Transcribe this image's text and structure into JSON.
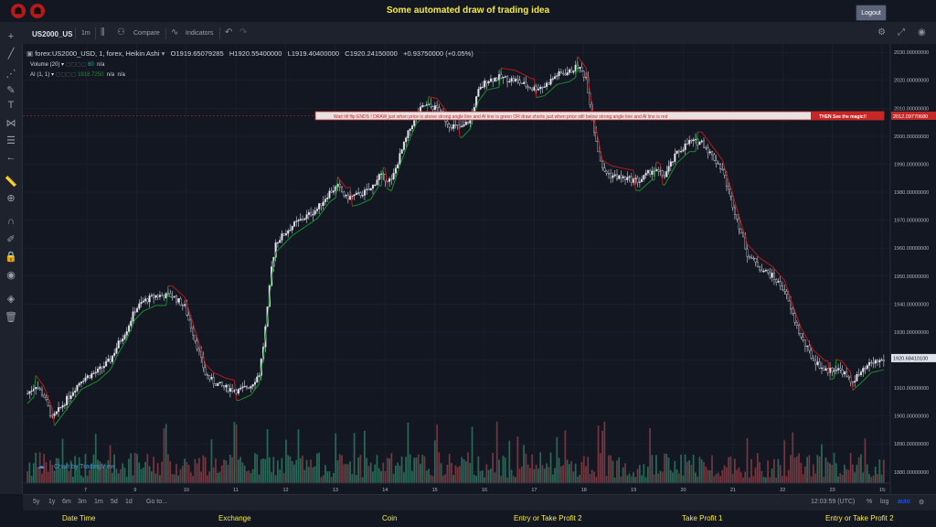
{
  "page": {
    "title": "Some automated draw of trading idea",
    "logout_label": "Logout"
  },
  "toolbar": {
    "symbol": "US2000_US",
    "interval": "1m",
    "compare_label": "Compare",
    "indicators_label": "Indicators"
  },
  "legend": {
    "main": "forex:US2000_USD, 1, forex, Heikin Ashi",
    "open": "O1919.65079285",
    "high": "H1920.55400000",
    "low": "L1919.40400000",
    "close": "C1920.24150000",
    "change": "+0.93750000 (+0.05%)",
    "volume_label": "Volume (20)",
    "volume_value": "60",
    "volume_na": "n/a",
    "ai_label": "AI (1, 1)",
    "ai_value": "1918.7250",
    "ai_na1": "n/a",
    "ai_na2": "n/a"
  },
  "annotation": {
    "text": "Wait till flip ENDS !    DRAW just when  price is above strong angle line and AI line is green          OR         draw shorts just when price still below strong angle line and AI line is red",
    "magic": "THEN See the magic!!",
    "level": "2012.09770680"
  },
  "watermark": "Chart by TradingView",
  "colors": {
    "up": "#26a69a",
    "down": "#ef5350",
    "ai_green": "#1a8f2e",
    "ai_red": "#b71c1c",
    "accent": "#f5e94a"
  },
  "chart_data": {
    "type": "candlestick",
    "y_axis": [
      "2030.00000000",
      "2020.00000000",
      "2010.00000000",
      "2000.00000000",
      "1990.00000000",
      "1980.00000000",
      "1970.00000000",
      "1960.00000000",
      "1950.00000000",
      "1940.00000000",
      "1930.00000000",
      "1920.00000000",
      "1910.00000000",
      "1900.00000000",
      "1890.00000000",
      "1880.00000000"
    ],
    "ylim": [
      1876,
      2033
    ],
    "x_axis": [
      "7",
      "9",
      "10",
      "11",
      "12",
      "13",
      "14",
      "15",
      "16",
      "17",
      "18",
      "19",
      "20",
      "21",
      "22",
      "23",
      "15:"
    ],
    "last_price": "1920.68410100",
    "price_path": [
      [
        0,
        1908
      ],
      [
        4,
        1911
      ],
      [
        8,
        1907
      ],
      [
        12,
        1899
      ],
      [
        18,
        1905
      ],
      [
        26,
        1913
      ],
      [
        34,
        1916
      ],
      [
        40,
        1920
      ],
      [
        44,
        1926
      ],
      [
        48,
        1931
      ],
      [
        52,
        1938
      ],
      [
        56,
        1941
      ],
      [
        62,
        1943
      ],
      [
        70,
        1943
      ],
      [
        76,
        1939
      ],
      [
        82,
        1925
      ],
      [
        86,
        1915
      ],
      [
        90,
        1912
      ],
      [
        96,
        1910
      ],
      [
        102,
        1909
      ],
      [
        108,
        1911
      ],
      [
        112,
        1915
      ],
      [
        114,
        1925
      ],
      [
        116,
        1938
      ],
      [
        118,
        1953
      ],
      [
        120,
        1962
      ],
      [
        124,
        1965
      ],
      [
        128,
        1968
      ],
      [
        134,
        1971
      ],
      [
        140,
        1974
      ],
      [
        146,
        1980
      ],
      [
        150,
        1982
      ],
      [
        154,
        1978
      ],
      [
        160,
        1979
      ],
      [
        166,
        1981
      ],
      [
        170,
        1986
      ],
      [
        176,
        1984
      ],
      [
        180,
        1993
      ],
      [
        184,
        2001
      ],
      [
        188,
        2008
      ],
      [
        192,
        2011
      ],
      [
        198,
        2010
      ],
      [
        204,
        2004
      ],
      [
        210,
        2003
      ],
      [
        214,
        2006
      ],
      [
        218,
        2016
      ],
      [
        222,
        2020
      ],
      [
        228,
        2021
      ],
      [
        236,
        2020
      ],
      [
        244,
        2017
      ],
      [
        250,
        2018
      ],
      [
        256,
        2022
      ],
      [
        262,
        2023
      ],
      [
        266,
        2025
      ],
      [
        270,
        2021
      ],
      [
        272,
        2012
      ],
      [
        274,
        2002
      ],
      [
        278,
        1988
      ],
      [
        282,
        1986
      ],
      [
        288,
        1985
      ],
      [
        296,
        1984
      ],
      [
        302,
        1988
      ],
      [
        308,
        1986
      ],
      [
        314,
        1994
      ],
      [
        320,
        1998
      ],
      [
        326,
        1998
      ],
      [
        332,
        1992
      ],
      [
        336,
        1988
      ],
      [
        340,
        1978
      ],
      [
        344,
        1968
      ],
      [
        348,
        1958
      ],
      [
        354,
        1953
      ],
      [
        360,
        1950
      ],
      [
        366,
        1945
      ],
      [
        370,
        1936
      ],
      [
        374,
        1928
      ],
      [
        380,
        1920
      ],
      [
        386,
        1916
      ],
      [
        390,
        1917
      ],
      [
        394,
        1916
      ],
      [
        398,
        1912
      ],
      [
        404,
        1916
      ],
      [
        408,
        1919
      ],
      [
        414,
        1920
      ]
    ],
    "volume_series": [
      "green",
      "red"
    ]
  },
  "bottom_bar": {
    "ranges": [
      "5y",
      "1y",
      "6m",
      "3m",
      "1m",
      "5d",
      "1d"
    ],
    "goto": "Go to...",
    "time": "12:03:59 (UTC)",
    "pct": "%",
    "log": "log",
    "auto": "auto"
  },
  "footer": [
    "Date Time",
    "Exchange",
    "Coin",
    "Entry or Take Profit 2",
    "Take Profit 1",
    "Entry or Take Profit 2"
  ]
}
